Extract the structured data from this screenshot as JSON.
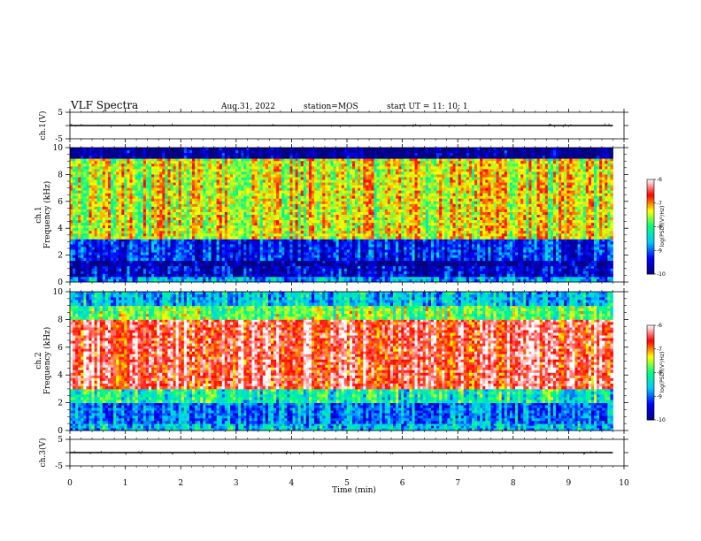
{
  "header": {
    "title": "VLF Spectra",
    "date": "Aug.31, 2022",
    "station": "station=MOS",
    "start": "start  UT =   11: 10: 1"
  },
  "chart_data": [
    {
      "type": "line",
      "panel": "ch1-waveform",
      "ylabel": "ch.1(V)",
      "yticks": [
        "5",
        "-5"
      ],
      "ylim": [
        -5,
        5
      ],
      "x": [
        0,
        9.8
      ],
      "values": [
        0,
        0
      ]
    },
    {
      "type": "heatmap",
      "panel": "ch1-spectrogram",
      "ylabel_top": "ch.1",
      "ylabel": "Frequency (kHz)",
      "yticks": [
        "0",
        "2",
        "4",
        "6",
        "8",
        "10"
      ],
      "ylim": [
        0,
        10
      ],
      "x_range": [
        0,
        9.8
      ],
      "colorbar": {
        "label": "log(PSD)(V²/Hz)",
        "ticks": [
          "-6",
          "-7",
          "-8",
          "-9",
          "-10"
        ],
        "range": [
          -10,
          -6
        ]
      },
      "bands": [
        {
          "f0": 0.0,
          "f1": 0.4,
          "level": -8.8
        },
        {
          "f0": 0.4,
          "f1": 1.2,
          "level": -9.6
        },
        {
          "f0": 1.2,
          "f1": 1.6,
          "level": -9.9
        },
        {
          "f0": 1.6,
          "f1": 3.2,
          "level": -9.3
        },
        {
          "f0": 3.2,
          "f1": 9.2,
          "level": -7.4
        },
        {
          "f0": 9.2,
          "f1": 10.0,
          "level": -9.9
        }
      ]
    },
    {
      "type": "heatmap",
      "panel": "ch2-spectrogram",
      "ylabel_top": "ch.2",
      "ylabel": "Frequency (kHz)",
      "yticks": [
        "0",
        "2",
        "4",
        "6",
        "8",
        "10"
      ],
      "ylim": [
        0,
        10
      ],
      "x_range": [
        0,
        9.8
      ],
      "colorbar": {
        "label": "log(PSD)(V²/Hz)",
        "ticks": [
          "-6",
          "-7",
          "-8",
          "-9",
          "-10"
        ],
        "range": [
          -10,
          -6
        ]
      },
      "bands": [
        {
          "f0": 0.0,
          "f1": 0.5,
          "level": -8.6
        },
        {
          "f0": 0.5,
          "f1": 2.0,
          "level": -8.9
        },
        {
          "f0": 2.0,
          "f1": 3.0,
          "level": -8.2
        },
        {
          "f0": 3.0,
          "f1": 8.0,
          "level": -6.5
        },
        {
          "f0": 8.0,
          "f1": 9.0,
          "level": -7.8
        },
        {
          "f0": 9.0,
          "f1": 10.0,
          "level": -8.6
        }
      ]
    },
    {
      "type": "line",
      "panel": "ch3-waveform",
      "ylabel": "ch.3(V)",
      "yticks": [
        "5",
        "-5"
      ],
      "ylim": [
        -5,
        5
      ],
      "x": [
        0,
        9.8
      ],
      "values": [
        0,
        0
      ]
    }
  ],
  "xaxis": {
    "label": "Time (min)",
    "ticks": [
      "0",
      "1",
      "2",
      "3",
      "4",
      "5",
      "6",
      "7",
      "8",
      "9",
      "10"
    ],
    "range": [
      0,
      10
    ]
  },
  "colors": {
    "scale": [
      "#000080",
      "#0000ff",
      "#00c8ff",
      "#00ff80",
      "#ffff00",
      "#ff0000",
      "#ffffff"
    ]
  }
}
